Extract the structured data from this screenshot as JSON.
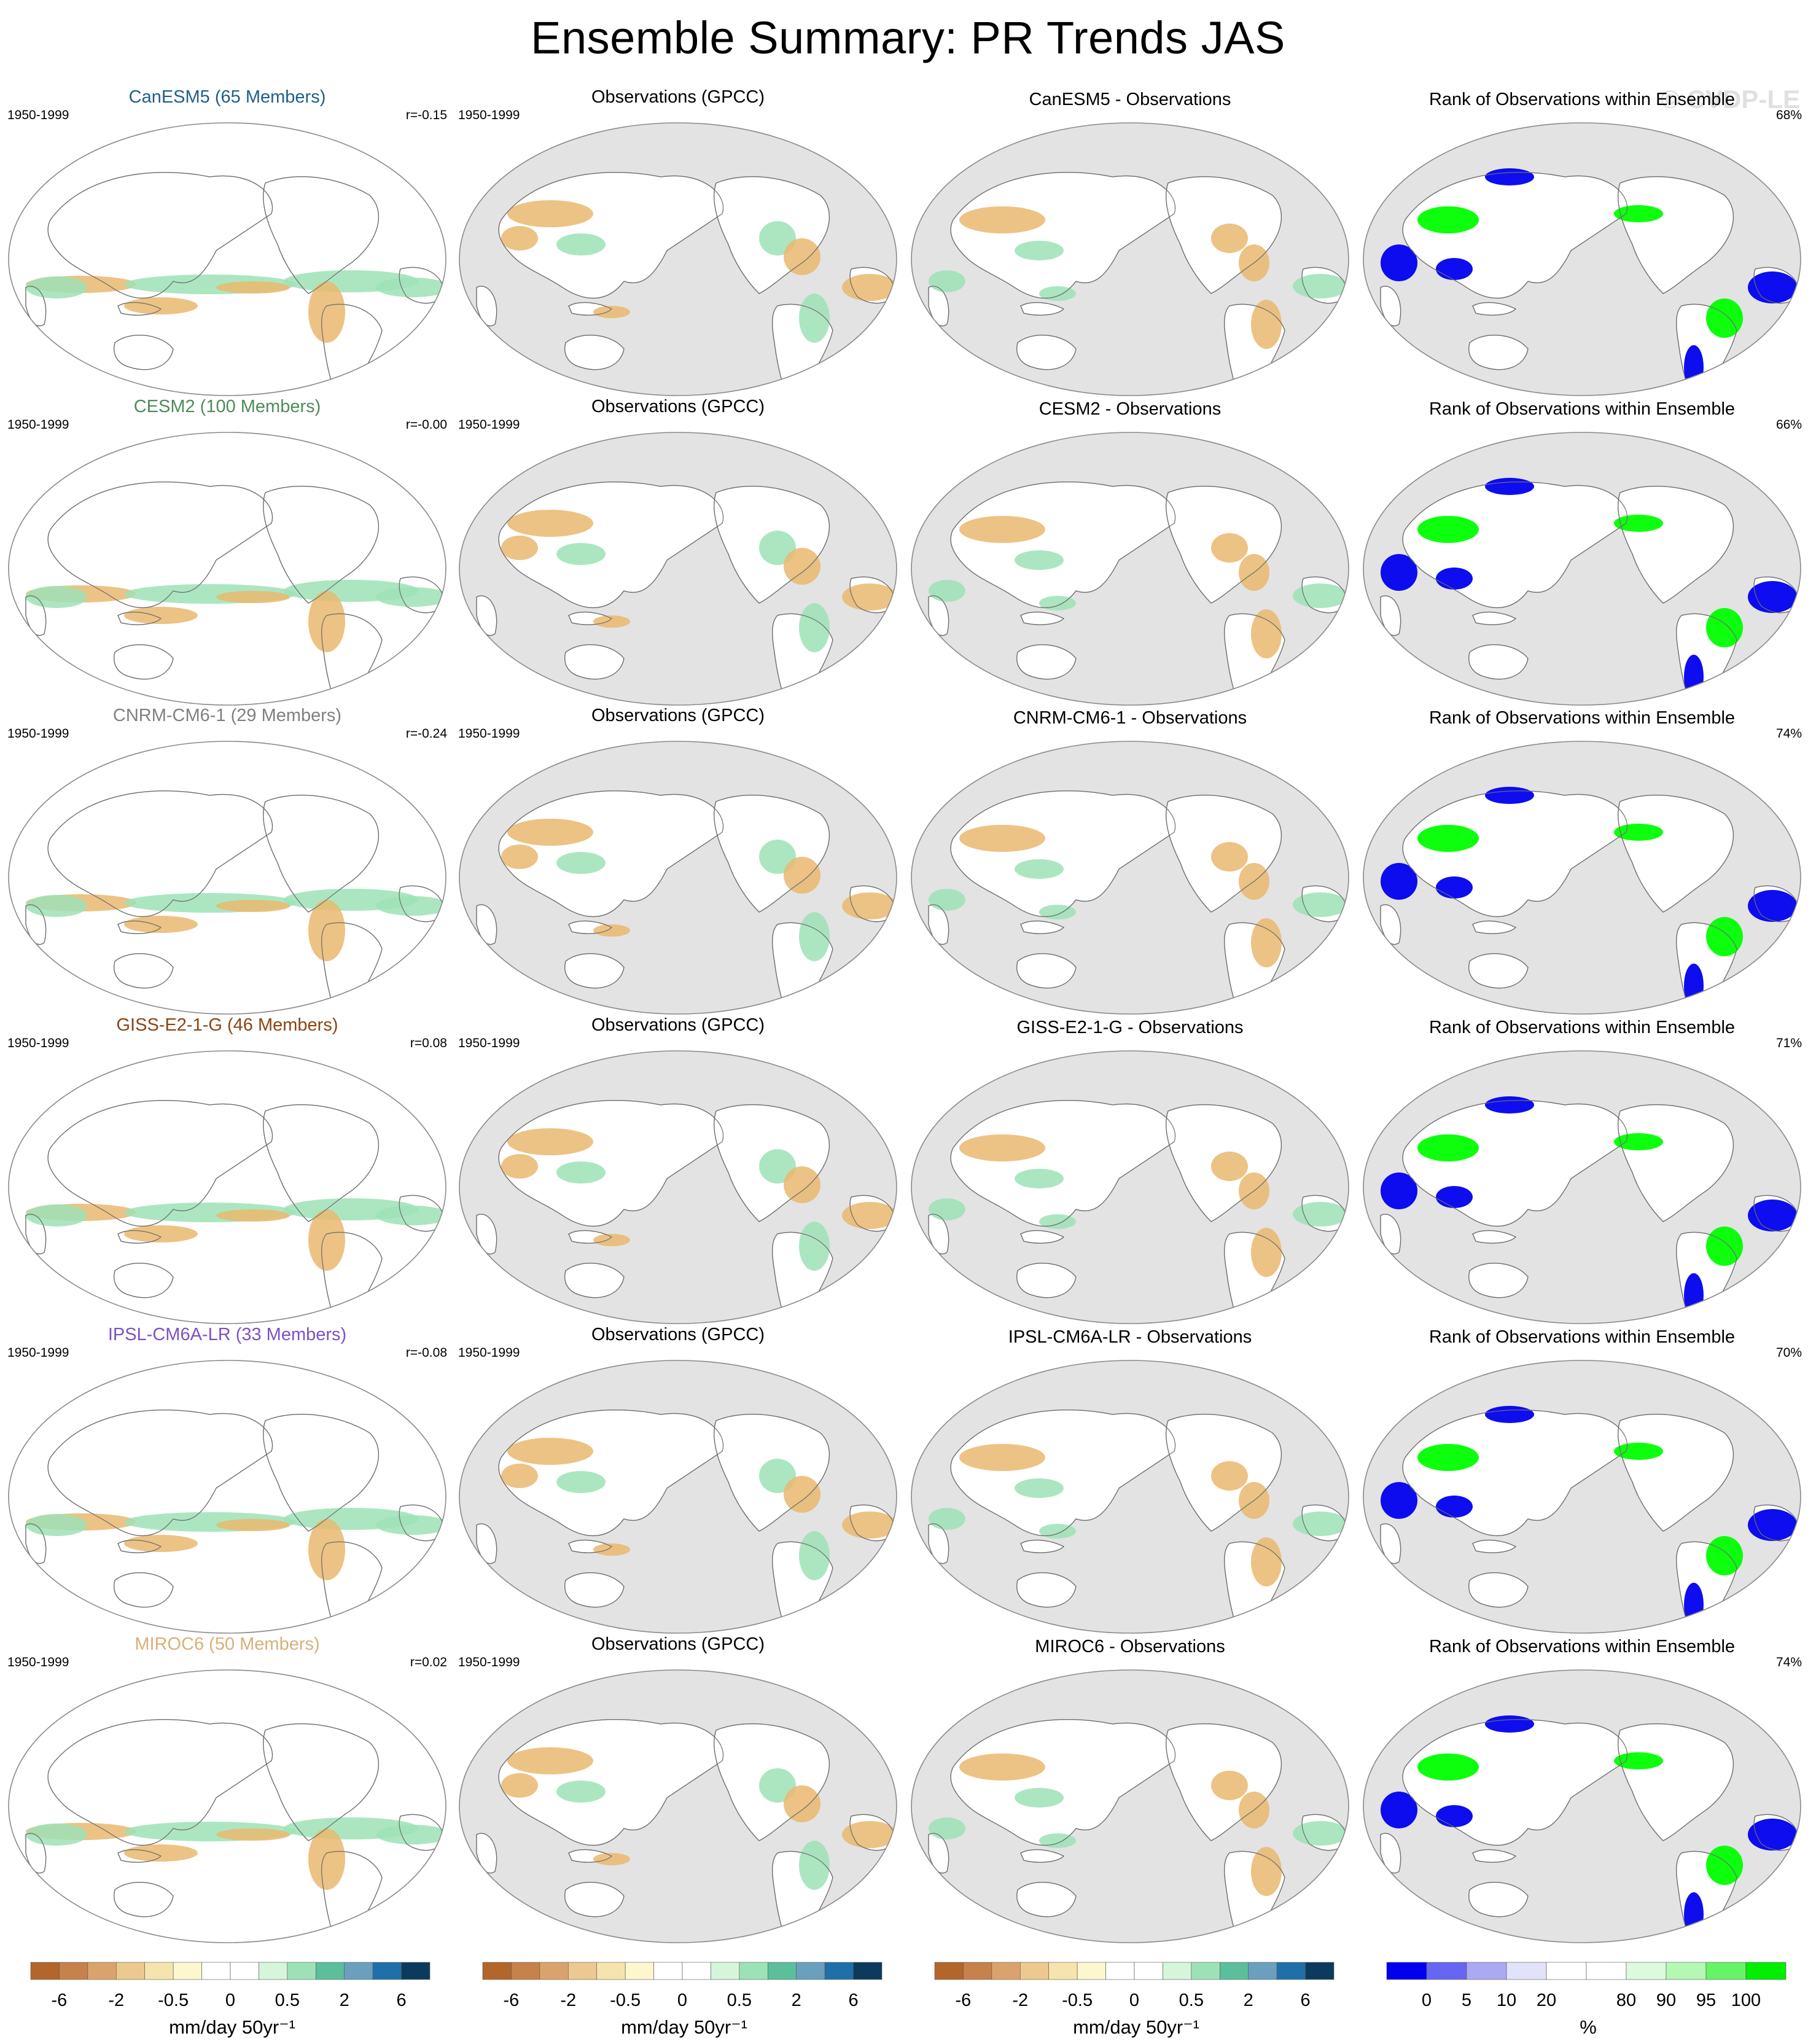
{
  "title": "Ensemble Summary: PR Trends JAS",
  "watermark": "© CVDP-LE",
  "colors": {
    "land_mask": "#e3e3e3",
    "brown": "#e9b96e",
    "green": "#9de2b6",
    "rank_blue": "#0000ee",
    "rank_green": "#00ff00"
  },
  "rows": [
    {
      "model": "CanESM5 (65 Members)",
      "model_color": "#1f5f8c",
      "period": "1950-1999",
      "r": "r=-0.15",
      "obs_title": "Observations (GPCC)",
      "obs_period": "1950-1999",
      "diff_title": "CanESM5 - Observations",
      "rank_title": "Rank of Observations within Ensemble",
      "rank_pct": "68%"
    },
    {
      "model": "CESM2 (100 Members)",
      "model_color": "#4e8c5a",
      "period": "1950-1999",
      "r": "r=-0.00",
      "obs_title": "Observations (GPCC)",
      "obs_period": "1950-1999",
      "diff_title": "CESM2 - Observations",
      "rank_title": "Rank of Observations within Ensemble",
      "rank_pct": "66%"
    },
    {
      "model": "CNRM-CM6-1 (29 Members)",
      "model_color": "#808080",
      "period": "1950-1999",
      "r": "r=-0.24",
      "obs_title": "Observations (GPCC)",
      "obs_period": "1950-1999",
      "diff_title": "CNRM-CM6-1 - Observations",
      "rank_title": "Rank of Observations within Ensemble",
      "rank_pct": "74%"
    },
    {
      "model": "GISS-E2-1-G (46 Members)",
      "model_color": "#8b4513",
      "period": "1950-1999",
      "r": "r=0.08",
      "obs_title": "Observations (GPCC)",
      "obs_period": "1950-1999",
      "diff_title": "GISS-E2-1-G - Observations",
      "rank_title": "Rank of Observations within Ensemble",
      "rank_pct": "71%"
    },
    {
      "model": "IPSL-CM6A-LR (33 Members)",
      "model_color": "#7b52c6",
      "period": "1950-1999",
      "r": "r=-0.08",
      "obs_title": "Observations (GPCC)",
      "obs_period": "1950-1999",
      "diff_title": "IPSL-CM6A-LR - Observations",
      "rank_title": "Rank of Observations within Ensemble",
      "rank_pct": "70%"
    },
    {
      "model": "MIROC6 (50 Members)",
      "model_color": "#d8b07a",
      "period": "1950-1999",
      "r": "r=0.02",
      "obs_title": "Observations (GPCC)",
      "obs_period": "1950-1999",
      "diff_title": "MIROC6 - Observations",
      "rank_title": "Rank of Observations within Ensemble",
      "rank_pct": "74%"
    }
  ],
  "colorbars": [
    {
      "unit": "mm/day 50yr⁻¹",
      "colors": [
        "#b3652a",
        "#c7814a",
        "#dba36c",
        "#ecc98e",
        "#f6e4ad",
        "#fdf7cf",
        "#ffffff",
        "#ffffff",
        "#d6f5da",
        "#9de2b6",
        "#5cbf9c",
        "#6a9fbe",
        "#1f6faa",
        "#0c3a5c"
      ],
      "ticks": [
        "-6",
        "-2",
        "-0.5",
        "0",
        "0.5",
        "2",
        "6"
      ]
    },
    {
      "unit": "mm/day 50yr⁻¹",
      "colors": [
        "#b3652a",
        "#c7814a",
        "#dba36c",
        "#ecc98e",
        "#f6e4ad",
        "#fdf7cf",
        "#ffffff",
        "#ffffff",
        "#d6f5da",
        "#9de2b6",
        "#5cbf9c",
        "#6a9fbe",
        "#1f6faa",
        "#0c3a5c"
      ],
      "ticks": [
        "-6",
        "-2",
        "-0.5",
        "0",
        "0.5",
        "2",
        "6"
      ]
    },
    {
      "unit": "mm/day 50yr⁻¹",
      "colors": [
        "#b3652a",
        "#c7814a",
        "#dba36c",
        "#ecc98e",
        "#f6e4ad",
        "#fdf7cf",
        "#ffffff",
        "#ffffff",
        "#d6f5da",
        "#9de2b6",
        "#5cbf9c",
        "#6a9fbe",
        "#1f6faa",
        "#0c3a5c"
      ],
      "ticks": [
        "-6",
        "-2",
        "-0.5",
        "0",
        "0.5",
        "2",
        "6"
      ]
    },
    {
      "unit": "%",
      "colors": [
        "#0000ee",
        "#6666f2",
        "#aaaaf4",
        "#e2e2fb",
        "#ffffff",
        "#ffffff",
        "#ddfadd",
        "#b4f8b4",
        "#66f466",
        "#00ee00"
      ],
      "ticks": [
        "0",
        "5",
        "10",
        "20",
        "80",
        "90",
        "95",
        "100"
      ]
    }
  ]
}
